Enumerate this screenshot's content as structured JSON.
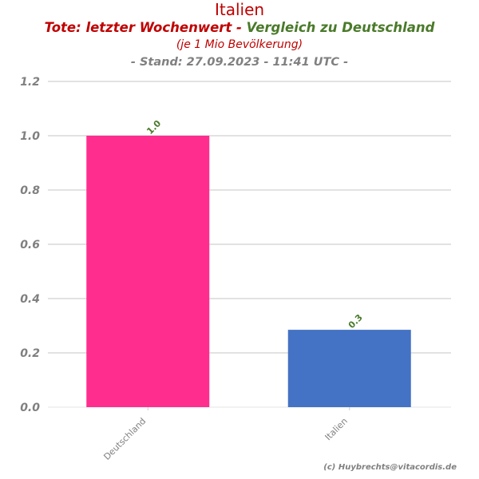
{
  "chart_data": {
    "type": "bar",
    "title": "Italien",
    "subtitle_part1": "Tote: letzter Wochenwert - ",
    "subtitle_part2": "Vergleich zu Deutschland",
    "subtitle2": "(je 1 Mio Bevölkerung)",
    "subtitle3": "- Stand: 27.09.2023 - 11:41 UTC -",
    "categories": [
      "Deutschland",
      "Italien"
    ],
    "values": [
      1.0,
      0.285
    ],
    "data_labels": [
      "1.0",
      "0.3"
    ],
    "bar_colors": [
      "#ff2d8e",
      "#4472c4"
    ],
    "ylim": [
      0,
      1.2
    ],
    "yticks": [
      "0.0",
      "0.2",
      "0.4",
      "0.6",
      "0.8",
      "1.0",
      "1.2"
    ],
    "ytick_values": [
      0,
      0.2,
      0.4,
      0.6,
      0.8,
      1.0,
      1.2
    ],
    "grid": true,
    "credit": "(c) Huybrechts@vitacordis.de"
  }
}
